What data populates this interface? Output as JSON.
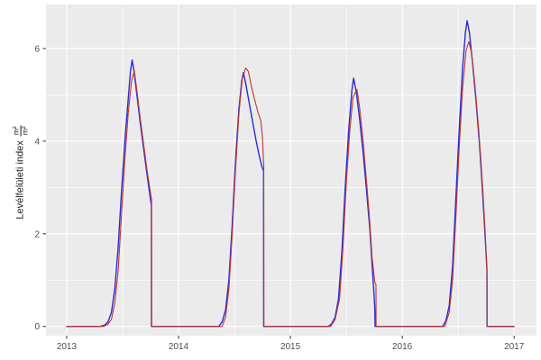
{
  "figure": {
    "background": "#FFFFFF",
    "panel_background": "#EBEBEB",
    "grid_color": "#FFFFFF",
    "tick_label_color": "#4D4D4D",
    "tick_mark_color": "#333333",
    "series_blue_color": "#2B2BD5",
    "series_red_color": "#BF3636"
  },
  "ylabel": {
    "text": "Levélfelületi index",
    "frac_numerator": "m²",
    "frac_denominator": "m²"
  },
  "chart_data": {
    "type": "line",
    "title": "",
    "xlabel": "",
    "ylabel": "Levélfelületi index (m²/m²)",
    "x_ticks": [
      2013,
      2014,
      2015,
      2016,
      2017
    ],
    "x_tick_labels": [
      "2013",
      "2014",
      "2015",
      "2016",
      "2017"
    ],
    "y_ticks": [
      0,
      2,
      4,
      6
    ],
    "y_tick_labels": [
      "0",
      "2",
      "4",
      "6"
    ],
    "x_minor_ticks": [
      2013.5,
      2014.5,
      2015.5,
      2016.5
    ],
    "y_minor_ticks": [
      1,
      3,
      5
    ],
    "xlim": [
      2012.815,
      2017.2
    ],
    "ylim": [
      -0.2,
      6.95
    ],
    "grid": true,
    "legend": "none",
    "series": [
      {
        "name": "series-blue",
        "color": "#2B2BD5",
        "width": 1.4,
        "points": [
          [
            2013.0,
            0
          ],
          [
            2013.3,
            0
          ],
          [
            2013.34,
            0.03
          ],
          [
            2013.37,
            0.1
          ],
          [
            2013.4,
            0.3
          ],
          [
            2013.43,
            0.8
          ],
          [
            2013.46,
            1.7
          ],
          [
            2013.49,
            2.9
          ],
          [
            2013.52,
            4.0
          ],
          [
            2013.55,
            4.9
          ],
          [
            2013.57,
            5.5
          ],
          [
            2013.585,
            5.75
          ],
          [
            2013.6,
            5.55
          ],
          [
            2013.63,
            4.95
          ],
          [
            2013.66,
            4.35
          ],
          [
            2013.69,
            3.8
          ],
          [
            2013.72,
            3.25
          ],
          [
            2013.74,
            2.9
          ],
          [
            2013.757,
            2.62
          ],
          [
            2013.758,
            0
          ],
          [
            2014.36,
            0
          ],
          [
            2014.39,
            0.1
          ],
          [
            2014.42,
            0.35
          ],
          [
            2014.45,
            1.0
          ],
          [
            2014.48,
            2.2
          ],
          [
            2014.51,
            3.6
          ],
          [
            2014.54,
            4.7
          ],
          [
            2014.565,
            5.3
          ],
          [
            2014.58,
            5.48
          ],
          [
            2014.6,
            5.25
          ],
          [
            2014.63,
            4.85
          ],
          [
            2014.66,
            4.45
          ],
          [
            2014.69,
            4.05
          ],
          [
            2014.72,
            3.7
          ],
          [
            2014.745,
            3.45
          ],
          [
            2014.76,
            3.36
          ],
          [
            2014.761,
            0
          ],
          [
            2015.34,
            0
          ],
          [
            2015.37,
            0.06
          ],
          [
            2015.4,
            0.2
          ],
          [
            2015.43,
            0.6
          ],
          [
            2015.46,
            1.6
          ],
          [
            2015.49,
            3.0
          ],
          [
            2015.52,
            4.2
          ],
          [
            2015.55,
            5.1
          ],
          [
            2015.565,
            5.36
          ],
          [
            2015.59,
            5.05
          ],
          [
            2015.62,
            4.45
          ],
          [
            2015.65,
            3.75
          ],
          [
            2015.68,
            2.95
          ],
          [
            2015.71,
            2.1
          ],
          [
            2015.73,
            1.35
          ],
          [
            2015.75,
            0.6
          ],
          [
            2015.755,
            0.35
          ],
          [
            2015.757,
            0
          ],
          [
            2016.36,
            0
          ],
          [
            2016.39,
            0.12
          ],
          [
            2016.42,
            0.45
          ],
          [
            2016.45,
            1.3
          ],
          [
            2016.48,
            2.8
          ],
          [
            2016.51,
            4.3
          ],
          [
            2016.54,
            5.6
          ],
          [
            2016.565,
            6.35
          ],
          [
            2016.58,
            6.6
          ],
          [
            2016.6,
            6.35
          ],
          [
            2016.63,
            5.65
          ],
          [
            2016.66,
            4.85
          ],
          [
            2016.69,
            3.95
          ],
          [
            2016.71,
            3.2
          ],
          [
            2016.73,
            2.4
          ],
          [
            2016.75,
            1.55
          ],
          [
            2016.757,
            1.22
          ],
          [
            2016.758,
            0
          ],
          [
            2017.0,
            0
          ]
        ]
      },
      {
        "name": "series-red",
        "color": "#BF3636",
        "width": 1.1,
        "points": [
          [
            2013.0,
            0
          ],
          [
            2013.33,
            0
          ],
          [
            2013.37,
            0.05
          ],
          [
            2013.4,
            0.15
          ],
          [
            2013.43,
            0.5
          ],
          [
            2013.46,
            1.2
          ],
          [
            2013.49,
            2.4
          ],
          [
            2013.52,
            3.6
          ],
          [
            2013.55,
            4.6
          ],
          [
            2013.58,
            5.3
          ],
          [
            2013.605,
            5.52
          ],
          [
            2013.63,
            5.05
          ],
          [
            2013.66,
            4.45
          ],
          [
            2013.69,
            3.9
          ],
          [
            2013.72,
            3.35
          ],
          [
            2013.745,
            2.95
          ],
          [
            2013.757,
            2.76
          ],
          [
            2013.759,
            2.74
          ],
          [
            2013.76,
            0
          ],
          [
            2014.39,
            0
          ],
          [
            2014.42,
            0.2
          ],
          [
            2014.45,
            0.8
          ],
          [
            2014.48,
            2.0
          ],
          [
            2014.51,
            3.4
          ],
          [
            2014.54,
            4.6
          ],
          [
            2014.57,
            5.35
          ],
          [
            2014.6,
            5.58
          ],
          [
            2014.625,
            5.5
          ],
          [
            2014.65,
            5.2
          ],
          [
            2014.68,
            4.9
          ],
          [
            2014.71,
            4.62
          ],
          [
            2014.735,
            4.45
          ],
          [
            2014.75,
            4.1
          ],
          [
            2014.762,
            3.45
          ],
          [
            2014.763,
            0
          ],
          [
            2015.36,
            0
          ],
          [
            2015.4,
            0.15
          ],
          [
            2015.44,
            0.6
          ],
          [
            2015.47,
            1.7
          ],
          [
            2015.5,
            3.1
          ],
          [
            2015.53,
            4.2
          ],
          [
            2015.56,
            4.95
          ],
          [
            2015.595,
            5.12
          ],
          [
            2015.62,
            4.7
          ],
          [
            2015.65,
            4.0
          ],
          [
            2015.68,
            3.15
          ],
          [
            2015.71,
            2.25
          ],
          [
            2015.73,
            1.5
          ],
          [
            2015.755,
            0.95
          ],
          [
            2015.765,
            0.9
          ],
          [
            2015.766,
            0
          ],
          [
            2016.38,
            0
          ],
          [
            2016.42,
            0.3
          ],
          [
            2016.45,
            1.0
          ],
          [
            2016.48,
            2.4
          ],
          [
            2016.51,
            3.9
          ],
          [
            2016.54,
            5.15
          ],
          [
            2016.57,
            5.95
          ],
          [
            2016.595,
            6.15
          ],
          [
            2016.62,
            5.9
          ],
          [
            2016.65,
            5.2
          ],
          [
            2016.68,
            4.35
          ],
          [
            2016.7,
            3.7
          ],
          [
            2016.72,
            2.95
          ],
          [
            2016.74,
            2.1
          ],
          [
            2016.755,
            1.3
          ],
          [
            2016.758,
            1.08
          ],
          [
            2016.759,
            0
          ],
          [
            2017.0,
            0
          ]
        ]
      }
    ]
  }
}
